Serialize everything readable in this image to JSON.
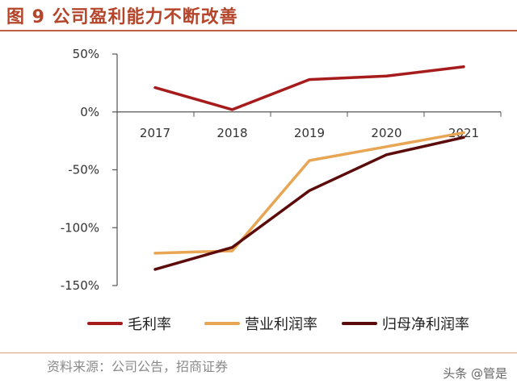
{
  "title": "图 9 公司盈利能力不断改善",
  "source": "资料来源：公司公告，招商证券",
  "watermark": "头条 @管是",
  "chart_data": {
    "type": "line",
    "title": "图 9 公司盈利能力不断改善",
    "x": [
      "2017",
      "2018",
      "2019",
      "2020",
      "2021"
    ],
    "ylim": [
      -150,
      50
    ],
    "yticks": [
      50,
      0,
      -50,
      -100,
      -150
    ],
    "ytick_labels": [
      "50%",
      "0%",
      "-50%",
      "-100%",
      "-150%"
    ],
    "grid": false,
    "legend_position": "bottom",
    "series": [
      {
        "name": "毛利率",
        "color": "#a61b1b",
        "values": [
          21,
          2,
          28,
          31,
          39
        ]
      },
      {
        "name": "营业利润率",
        "color": "#e8a554",
        "values": [
          -122,
          -120,
          -42,
          -30,
          -18
        ]
      },
      {
        "name": "归母净利润率",
        "color": "#5c0b0b",
        "values": [
          -136,
          -117,
          -68,
          -37,
          -22
        ]
      }
    ]
  }
}
